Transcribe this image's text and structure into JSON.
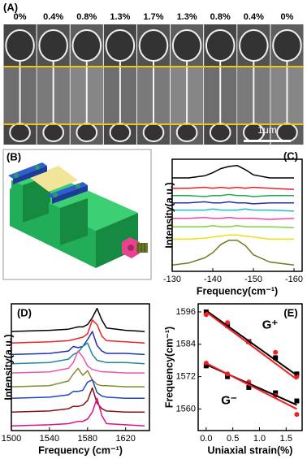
{
  "panel_a": {
    "label": "(A)",
    "strains": [
      "0%",
      "0.4%",
      "0.8%",
      "1.3%",
      "1.7%",
      "1.3%",
      "0.8%",
      "0.4%",
      "0%"
    ],
    "scale_bar": "1μm"
  },
  "panel_b": {
    "label": "(B)"
  },
  "chart_data": [
    {
      "type": "line",
      "label": "(C)",
      "xlabel": "Frequency(cm⁻¹)",
      "ylabel": "Intensity(a.u.)",
      "xlim": [
        -130,
        -162
      ],
      "xticks": [
        -130,
        -140,
        -150,
        -160
      ],
      "ylim": [
        0,
        10.8
      ],
      "x": [
        -130,
        -134,
        -138,
        -140,
        -142,
        -144,
        -146,
        -148,
        -150,
        -154,
        -160
      ],
      "series": [
        {
          "color": "#000000",
          "values": [
            9.0,
            9.0,
            9.2,
            9.5,
            9.9,
            10.1,
            10.2,
            9.8,
            9.3,
            9.0,
            9.0
          ]
        },
        {
          "color": "#ee2222",
          "values": [
            8.0,
            8.0,
            8.1,
            8.0,
            8.1,
            8.0,
            8.1,
            8.0,
            8.1,
            8.0,
            7.9
          ]
        },
        {
          "color": "#22aa55",
          "values": [
            7.3,
            7.3,
            7.2,
            7.3,
            7.3,
            7.4,
            7.3,
            7.3,
            7.2,
            7.3,
            7.3
          ]
        },
        {
          "color": "#2233aa",
          "values": [
            6.6,
            6.6,
            6.7,
            6.6,
            6.6,
            6.7,
            6.6,
            6.6,
            6.5,
            6.6,
            6.6
          ]
        },
        {
          "color": "#22bbcc",
          "values": [
            5.9,
            5.9,
            5.9,
            6.0,
            5.9,
            5.9,
            5.9,
            6.0,
            5.9,
            5.9,
            5.8
          ]
        },
        {
          "color": "#ee44aa",
          "values": [
            5.1,
            5.1,
            5.2,
            5.1,
            5.1,
            5.2,
            5.1,
            5.1,
            5.1,
            5.0,
            5.1
          ]
        },
        {
          "color": "#88cc44",
          "values": [
            4.3,
            4.3,
            4.3,
            4.4,
            4.3,
            4.3,
            4.4,
            4.3,
            4.3,
            4.3,
            4.2
          ]
        },
        {
          "color": "#eedd11",
          "values": [
            3.1,
            3.1,
            3.2,
            3.3,
            3.4,
            3.5,
            3.5,
            3.4,
            3.3,
            3.1,
            3.1
          ]
        },
        {
          "color": "#777722",
          "values": [
            0.6,
            0.8,
            1.3,
            1.8,
            2.6,
            3.0,
            3.0,
            2.5,
            1.6,
            0.9,
            0.6
          ]
        }
      ]
    },
    {
      "type": "line",
      "label": "(D)",
      "xlabel": "Frequency (cm⁻¹)",
      "ylabel": "Intensity(a.u.)",
      "xlim": [
        1500,
        1645
      ],
      "xticks": [
        1500,
        1540,
        1580,
        1620
      ],
      "ylim": [
        0,
        11
      ],
      "x": [
        1500,
        1540,
        1560,
        1565,
        1570,
        1575,
        1580,
        1585,
        1590,
        1595,
        1600,
        1620,
        1640
      ],
      "series": [
        {
          "color": "#000000",
          "values": [
            8.6,
            8.7,
            8.8,
            8.9,
            9.0,
            9.0,
            9.2,
            9.8,
            10.6,
            9.6,
            8.9,
            8.7,
            8.6
          ]
        },
        {
          "color": "#ee2222",
          "values": [
            7.6,
            7.7,
            7.8,
            7.9,
            8.0,
            8.1,
            8.4,
            9.6,
            9.2,
            8.2,
            7.8,
            7.7,
            7.6
          ]
        },
        {
          "color": "#2233aa",
          "values": [
            6.6,
            6.7,
            6.9,
            7.3,
            7.2,
            7.3,
            7.9,
            8.6,
            7.4,
            6.9,
            6.7,
            6.7,
            6.6
          ]
        },
        {
          "color": "#228899",
          "values": [
            5.8,
            5.9,
            6.2,
            6.6,
            6.8,
            7.3,
            7.6,
            6.6,
            6.1,
            6.0,
            5.9,
            5.9,
            5.8
          ]
        },
        {
          "color": "#ee55aa",
          "values": [
            5.0,
            5.1,
            5.4,
            5.9,
            6.9,
            6.4,
            5.6,
            5.3,
            5.2,
            5.1,
            5.1,
            5.0,
            5.0
          ]
        },
        {
          "color": "#888833",
          "values": [
            3.8,
            3.9,
            4.3,
            4.9,
            5.4,
            4.8,
            5.2,
            4.4,
            4.0,
            3.9,
            3.9,
            3.8,
            3.8
          ]
        },
        {
          "color": "#2244cc",
          "values": [
            2.8,
            2.9,
            3.1,
            3.4,
            3.4,
            3.5,
            4.2,
            4.4,
            3.3,
            3.0,
            2.9,
            2.8,
            2.8
          ]
        },
        {
          "color": "#881111",
          "values": [
            1.6,
            1.7,
            1.9,
            2.1,
            2.1,
            2.2,
            2.6,
            3.7,
            2.4,
            1.9,
            1.7,
            1.6,
            1.6
          ]
        },
        {
          "color": "#dd1188",
          "values": [
            0.4,
            0.5,
            0.6,
            0.7,
            0.8,
            0.8,
            1.0,
            1.6,
            2.8,
            1.3,
            0.6,
            0.5,
            0.4
          ]
        }
      ]
    },
    {
      "type": "scatter",
      "label": "(E)",
      "xlabel": "Uniaxial strain(%)",
      "ylabel": "Frequency(cm⁻¹)",
      "xlim": [
        -0.15,
        1.8
      ],
      "xticks": [
        {
          "value": 0,
          "label": "0.0"
        },
        0.5,
        {
          "value": 1,
          "label": "1.0"
        },
        1.5
      ],
      "ylim": [
        1552,
        1599
      ],
      "yticks": [
        1560,
        1572,
        1584,
        1596
      ],
      "annotations": [
        "G⁺",
        "G⁻"
      ],
      "series": [
        {
          "color": "#000000",
          "marker": "square",
          "x": [
            0,
            0.4,
            0.8,
            1.3,
            1.7
          ],
          "values": [
            1596,
            1591,
            1585,
            1579,
            1573
          ]
        },
        {
          "color": "#ee2222",
          "marker": "circle",
          "x": [
            0,
            0.4,
            0.8,
            1.3,
            1.7
          ],
          "values": [
            1595,
            1592,
            1585,
            1581,
            1572
          ]
        },
        {
          "color": "#000000",
          "marker": "square",
          "x": [
            0,
            0.4,
            0.8,
            1.3,
            1.7
          ],
          "values": [
            1576,
            1572,
            1568,
            1566,
            1563
          ]
        },
        {
          "color": "#ee2222",
          "marker": "circle",
          "x": [
            0,
            0.4,
            0.8,
            1.3,
            1.7
          ],
          "values": [
            1577,
            1573,
            1570,
            1565,
            1558
          ]
        },
        {
          "color": "#000000",
          "marker": "none",
          "x": [
            0,
            1.7
          ],
          "values": [
            1596.5,
            1572.5
          ]
        },
        {
          "color": "#ee2222",
          "marker": "none",
          "x": [
            0,
            1.7
          ],
          "values": [
            1596,
            1571
          ]
        },
        {
          "color": "#000000",
          "marker": "none",
          "x": [
            0,
            1.7
          ],
          "values": [
            1576.5,
            1561.5
          ]
        },
        {
          "color": "#ee2222",
          "marker": "none",
          "x": [
            0,
            1.7
          ],
          "values": [
            1577,
            1560
          ]
        }
      ]
    }
  ]
}
